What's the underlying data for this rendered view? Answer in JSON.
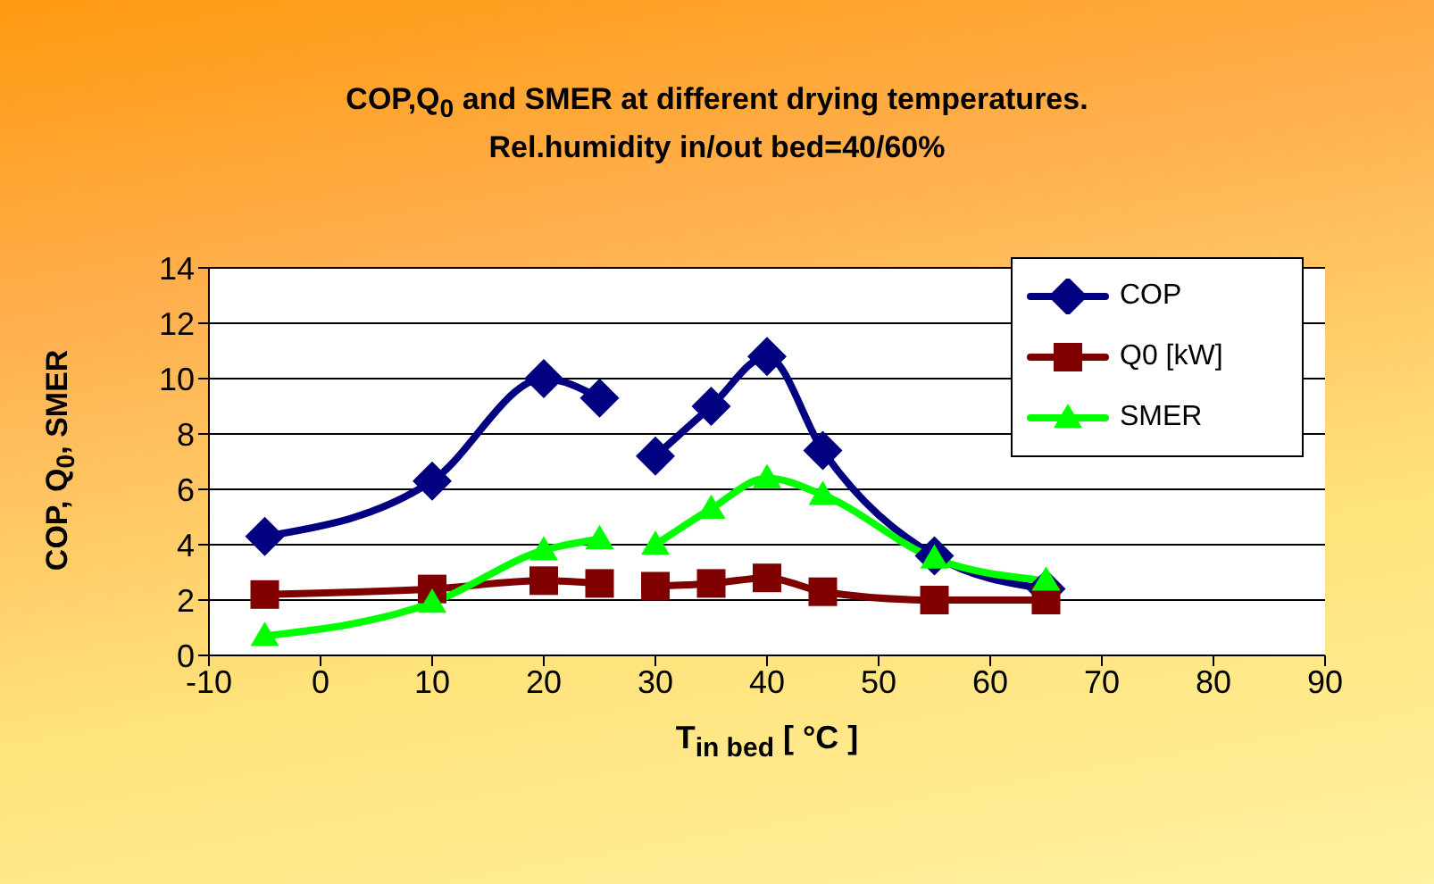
{
  "chart_data": {
    "type": "line",
    "title": "COP,Q$_{0}$ and SMER at different drying temperatures.\nRel.humidity in/out bed=40/60%",
    "xlabel": "T$_{in bed}$ [ °C ]",
    "ylabel": "COP, Q$_{0}$, SMER",
    "x": [
      -5,
      10,
      20,
      25,
      27.5,
      30,
      35,
      40,
      45,
      55,
      65
    ],
    "series": [
      {
        "name": "COP",
        "color": "#000080",
        "marker": "diamond",
        "values": [
          4.3,
          6.3,
          10.0,
          9.3,
          null,
          7.2,
          9.0,
          10.8,
          7.4,
          3.6,
          2.4
        ]
      },
      {
        "name": "Q0 [kW]",
        "color": "#800000",
        "marker": "square",
        "values": [
          2.2,
          2.4,
          2.7,
          2.6,
          null,
          2.5,
          2.6,
          2.8,
          2.3,
          2.0,
          2.0
        ]
      },
      {
        "name": "SMER",
        "color": "#00ff00",
        "marker": "triangle",
        "values": [
          0.7,
          1.9,
          3.8,
          4.2,
          null,
          4.0,
          5.3,
          6.4,
          5.8,
          3.5,
          2.7
        ]
      }
    ],
    "xlim": [
      -10,
      90
    ],
    "xticks": [
      -10,
      0,
      10,
      20,
      30,
      40,
      50,
      60,
      70,
      80,
      90
    ],
    "ylim": [
      0,
      14
    ],
    "yticks": [
      0,
      2,
      4,
      6,
      8,
      10,
      12,
      14
    ],
    "grid": "y",
    "legend": "top right"
  }
}
